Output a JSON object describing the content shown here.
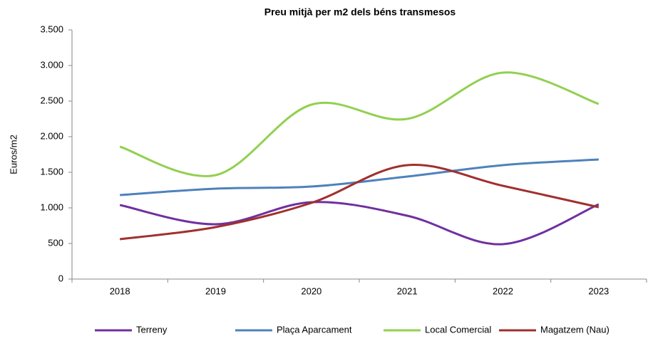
{
  "chart_data": {
    "type": "line",
    "title": "Preu mitjà per m2 dels béns transmesos",
    "y_label": "Euros/m2",
    "categories": [
      "2018",
      "2019",
      "2020",
      "2021",
      "2022",
      "2023"
    ],
    "series": [
      {
        "name": "Terreny",
        "color": "#7030a0",
        "values": [
          1040,
          770,
          1080,
          890,
          490,
          1050
        ]
      },
      {
        "name": "Plaça Aparcament",
        "color": "#4f81bd",
        "values": [
          1180,
          1270,
          1300,
          1440,
          1600,
          1680
        ]
      },
      {
        "name": "Local Comercial",
        "color": "#92d050",
        "values": [
          1860,
          1460,
          2450,
          2250,
          2900,
          2460
        ]
      },
      {
        "name": "Magatzem (Nau)",
        "color": "#a0302e",
        "values": [
          560,
          730,
          1070,
          1600,
          1310,
          1010
        ]
      }
    ],
    "ylim": [
      0,
      3500
    ],
    "yticks": [
      0,
      500,
      {
        "value": 1000,
        "label": "1.000"
      },
      {
        "value": 1500,
        "label": "1.500"
      },
      {
        "value": 2000,
        "label": "2.000"
      },
      {
        "value": 2500,
        "label": "2.500"
      },
      {
        "value": 3000,
        "label": "3.000"
      },
      {
        "value": 3500,
        "label": "3.500"
      }
    ],
    "grid": false,
    "legend": "bottom"
  }
}
